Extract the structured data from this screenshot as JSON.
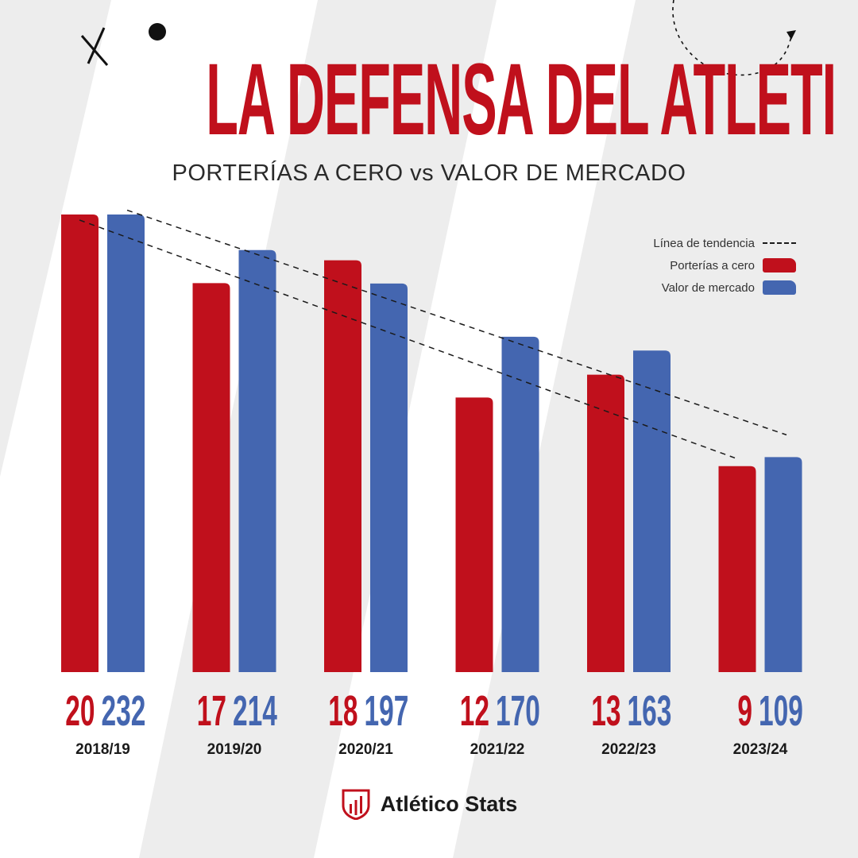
{
  "title": "LA DEFENSA DEL ATLETI",
  "subtitle": "PORTERÍAS A CERO vs VALOR DE MERCADO",
  "colors": {
    "red": "#c0101c",
    "blue": "#4466b0",
    "background": "#ededed",
    "stripe": "#ffffff"
  },
  "legend": {
    "trend": "Línea de tendencia",
    "clean_sheets": "Porterías a cero",
    "market_value": "Valor de mercado"
  },
  "brand": {
    "name": "Atlético Stats",
    "icon": "atletico-shield-icon"
  },
  "chart_data": {
    "type": "bar",
    "categories": [
      "2018/19",
      "2019/20",
      "2020/21",
      "2021/22",
      "2022/23",
      "2023/24"
    ],
    "series": [
      {
        "name": "Porterías a cero",
        "values": [
          20,
          17,
          18,
          12,
          13,
          9
        ]
      },
      {
        "name": "Valor de mercado",
        "values": [
          232,
          214,
          197,
          170,
          163,
          109
        ]
      }
    ],
    "trendlines": [
      "Porterías a cero",
      "Valor de mercado"
    ],
    "legend_position": "top-right",
    "grid": false,
    "axes_visible": false,
    "title": "LA DEFENSA DEL ATLETI",
    "subtitle": "PORTERÍAS A CERO vs VALOR DE MERCADO"
  }
}
